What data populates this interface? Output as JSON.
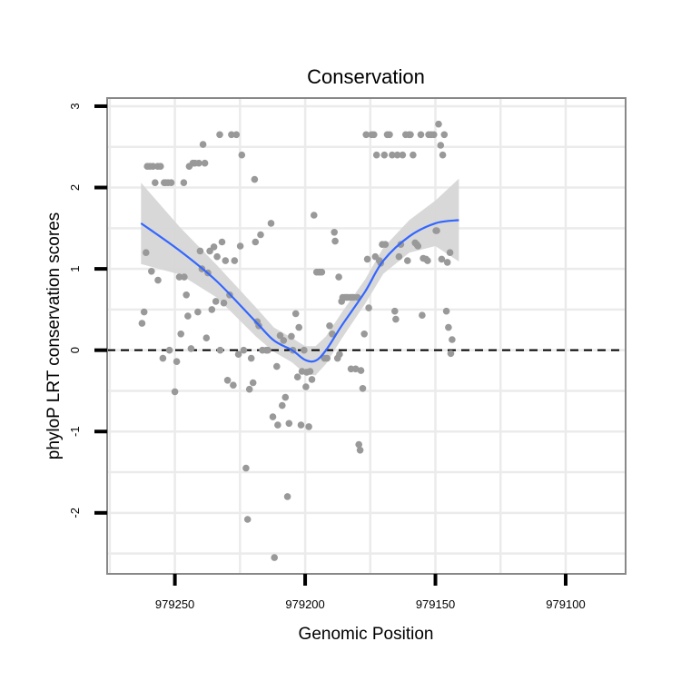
{
  "chart_data": {
    "type": "scatter",
    "title": "Conservation",
    "xlabel": "Genomic Position",
    "ylabel": "phyloP LRT conservation scores",
    "x_reversed": true,
    "xlim": [
      979276,
      979077
    ],
    "ylim": [
      -2.75,
      3.1
    ],
    "x_ticks": [
      979250,
      979200,
      979150,
      979100
    ],
    "y_ticks": [
      -2,
      -1,
      0,
      1,
      2,
      3
    ],
    "grid": true,
    "reference_line": {
      "y": 0,
      "style": "dashed",
      "color": "#000000"
    },
    "colors": {
      "points": "#999999",
      "smooth_line": "#3366ff",
      "ribbon": "#d6d6d6",
      "grid": "#ebebeb",
      "panel_border": "#888888"
    },
    "points": [
      [
        979262.6,
        0.33
      ],
      [
        979261.8,
        0.47
      ],
      [
        979261.1,
        1.2
      ],
      [
        979260.6,
        2.26
      ],
      [
        979259.6,
        2.26
      ],
      [
        979259.0,
        0.97
      ],
      [
        979258.4,
        2.26
      ],
      [
        979257.6,
        2.06
      ],
      [
        979256.6,
        2.26
      ],
      [
        979256.5,
        0.86
      ],
      [
        979255.5,
        2.26
      ],
      [
        979254.6,
        -0.1
      ],
      [
        979254.1,
        2.06
      ],
      [
        979253.6,
        2.06
      ],
      [
        979252.6,
        2.06
      ],
      [
        979252.1,
        0.0
      ],
      [
        979251.4,
        2.06
      ],
      [
        979250.0,
        -0.51
      ],
      [
        979249.3,
        -0.14
      ],
      [
        979248.3,
        0.9
      ],
      [
        979247.7,
        0.2
      ],
      [
        979246.6,
        2.06
      ],
      [
        979246.4,
        0.9
      ],
      [
        979245.6,
        0.68
      ],
      [
        979245.0,
        0.42
      ],
      [
        979244.5,
        2.26
      ],
      [
        979243.8,
        0.02
      ],
      [
        979243.1,
        2.3
      ],
      [
        979242.3,
        2.3
      ],
      [
        979241.2,
        0.47
      ],
      [
        979240.8,
        2.3
      ],
      [
        979240.3,
        1.22
      ],
      [
        979239.6,
        1.0
      ],
      [
        979239.2,
        2.53
      ],
      [
        979238.5,
        2.3
      ],
      [
        979237.9,
        0.15
      ],
      [
        979237.3,
        0.95
      ],
      [
        979236.6,
        1.22
      ],
      [
        979235.8,
        0.5
      ],
      [
        979235.0,
        1.27
      ],
      [
        979234.3,
        0.6
      ],
      [
        979233.8,
        1.15
      ],
      [
        979232.8,
        2.65
      ],
      [
        979232.6,
        0.0
      ],
      [
        979231.9,
        1.33
      ],
      [
        979231.2,
        0.58
      ],
      [
        979230.6,
        1.1
      ],
      [
        979229.8,
        -0.37
      ],
      [
        979229.0,
        0.68
      ],
      [
        979228.3,
        2.65
      ],
      [
        979227.6,
        -0.43
      ],
      [
        979227.1,
        1.1
      ],
      [
        979226.4,
        2.65
      ],
      [
        979225.6,
        -0.05
      ],
      [
        979224.9,
        1.28
      ],
      [
        979224.3,
        2.4
      ],
      [
        979223.6,
        0.0
      ],
      [
        979222.7,
        -1.45
      ],
      [
        979222.1,
        -2.08
      ],
      [
        979221.4,
        -0.48
      ],
      [
        979220.7,
        -0.1
      ],
      [
        979220.0,
        -0.4
      ],
      [
        979219.4,
        2.1
      ],
      [
        979219.1,
        1.33
      ],
      [
        979218.4,
        0.35
      ],
      [
        979217.8,
        0.3
      ],
      [
        979217.1,
        1.42
      ],
      [
        979216.4,
        0.0
      ],
      [
        979214.9,
        0.0
      ],
      [
        979214.3,
        0.0
      ],
      [
        979213.1,
        1.56
      ],
      [
        979212.4,
        -0.82
      ],
      [
        979211.8,
        -2.55
      ],
      [
        979210.9,
        -0.2
      ],
      [
        979210.5,
        -0.92
      ],
      [
        979209.6,
        0.18
      ],
      [
        979208.8,
        -0.68
      ],
      [
        979208.3,
        0.12
      ],
      [
        979207.6,
        -0.58
      ],
      [
        979206.8,
        -1.8
      ],
      [
        979206.2,
        -0.9
      ],
      [
        979205.3,
        0.17
      ],
      [
        979204.7,
        0.0
      ],
      [
        979203.6,
        0.45
      ],
      [
        979202.9,
        -0.33
      ],
      [
        979202.4,
        0.28
      ],
      [
        979201.6,
        -0.92
      ],
      [
        979201.2,
        -0.26
      ],
      [
        979200.4,
        0.0
      ],
      [
        979199.7,
        -0.45
      ],
      [
        979199.4,
        -0.27
      ],
      [
        979198.6,
        -0.94
      ],
      [
        979198.1,
        -0.26
      ],
      [
        979197.4,
        -0.36
      ],
      [
        979196.6,
        1.66
      ],
      [
        979195.6,
        0.96
      ],
      [
        979194.7,
        0.96
      ],
      [
        979194.2,
        0.96
      ],
      [
        979193.6,
        0.96
      ],
      [
        979192.6,
        -0.1
      ],
      [
        979191.6,
        -0.1
      ],
      [
        979190.6,
        0.3
      ],
      [
        979189.6,
        0.2
      ],
      [
        979188.8,
        1.45
      ],
      [
        979188.5,
        1.34
      ],
      [
        979187.6,
        -0.1
      ],
      [
        979187.1,
        0.9
      ],
      [
        979186.8,
        -0.05
      ],
      [
        979186.0,
        0.6
      ],
      [
        979185.6,
        0.65
      ],
      [
        979184.8,
        0.65
      ],
      [
        979184.2,
        0.65
      ],
      [
        979183.6,
        0.65
      ],
      [
        979182.6,
        0.65
      ],
      [
        979182.4,
        -0.23
      ],
      [
        979181.9,
        0.65
      ],
      [
        979181.3,
        0.65
      ],
      [
        979180.6,
        -0.23
      ],
      [
        979179.9,
        0.65
      ],
      [
        979179.4,
        -1.16
      ],
      [
        979178.9,
        -1.23
      ],
      [
        979178.6,
        -0.25
      ],
      [
        979177.9,
        -0.47
      ],
      [
        979177.3,
        0.2
      ],
      [
        979176.6,
        2.65
      ],
      [
        979176.1,
        1.12
      ],
      [
        979175.6,
        0.52
      ],
      [
        979174.5,
        2.65
      ],
      [
        979173.6,
        2.65
      ],
      [
        979173.1,
        1.15
      ],
      [
        979172.6,
        2.4
      ],
      [
        979171.5,
        1.1
      ],
      [
        979171.0,
        1.07
      ],
      [
        979170.4,
        1.3
      ],
      [
        979169.6,
        2.4
      ],
      [
        979169.2,
        1.3
      ],
      [
        979168.5,
        2.65
      ],
      [
        979167.6,
        2.65
      ],
      [
        979166.6,
        2.4
      ],
      [
        979165.6,
        0.48
      ],
      [
        979165.2,
        0.38
      ],
      [
        979164.6,
        2.4
      ],
      [
        979164.0,
        1.15
      ],
      [
        979163.3,
        1.3
      ],
      [
        979162.6,
        2.4
      ],
      [
        979161.4,
        2.65
      ],
      [
        979160.7,
        1.1
      ],
      [
        979160.1,
        2.65
      ],
      [
        979159.6,
        2.65
      ],
      [
        979158.6,
        2.4
      ],
      [
        979157.8,
        1.32
      ],
      [
        979157.2,
        1.3
      ],
      [
        979156.7,
        1.28
      ],
      [
        979155.6,
        2.65
      ],
      [
        979155.1,
        0.43
      ],
      [
        979154.7,
        1.13
      ],
      [
        979153.6,
        1.12
      ],
      [
        979153.0,
        1.1
      ],
      [
        979152.6,
        2.65
      ],
      [
        979151.6,
        2.65
      ],
      [
        979150.6,
        2.65
      ],
      [
        979149.8,
        1.47
      ],
      [
        979149.5,
        1.47
      ],
      [
        979148.8,
        2.78
      ],
      [
        979148.0,
        2.52
      ],
      [
        979147.6,
        1.12
      ],
      [
        979147.2,
        2.4
      ],
      [
        979146.6,
        2.65
      ],
      [
        979145.8,
        0.48
      ],
      [
        979145.4,
        1.08
      ],
      [
        979145.0,
        0.28
      ],
      [
        979144.4,
        1.2
      ],
      [
        979144.1,
        -0.04
      ],
      [
        979143.6,
        0.13
      ]
    ],
    "smooth": [
      [
        979263,
        1.56
      ],
      [
        979248,
        1.22
      ],
      [
        979234,
        0.85
      ],
      [
        979219,
        0.35
      ],
      [
        979212,
        0.12
      ],
      [
        979205,
        0.0
      ],
      [
        979200,
        -0.12
      ],
      [
        979196,
        -0.13
      ],
      [
        979192,
        0.0
      ],
      [
        979186,
        0.3
      ],
      [
        979177,
        0.72
      ],
      [
        979170,
        1.1
      ],
      [
        979160,
        1.4
      ],
      [
        979150,
        1.56
      ],
      [
        979141,
        1.6
      ]
    ],
    "smooth_band": [
      [
        979263,
        1.06,
        2.06
      ],
      [
        979248,
        0.93,
        1.51
      ],
      [
        979234,
        0.65,
        1.05
      ],
      [
        979219,
        0.17,
        0.53
      ],
      [
        979212,
        -0.02,
        0.28
      ],
      [
        979205,
        -0.15,
        0.15
      ],
      [
        979200,
        -0.29,
        0.05
      ],
      [
        979196,
        -0.31,
        0.05
      ],
      [
        979192,
        -0.17,
        0.17
      ],
      [
        979186,
        0.14,
        0.46
      ],
      [
        979177,
        0.57,
        0.87
      ],
      [
        979170,
        0.94,
        1.26
      ],
      [
        979160,
        1.2,
        1.6
      ],
      [
        979150,
        1.28,
        1.84
      ],
      [
        979141,
        1.09,
        2.11
      ]
    ]
  }
}
